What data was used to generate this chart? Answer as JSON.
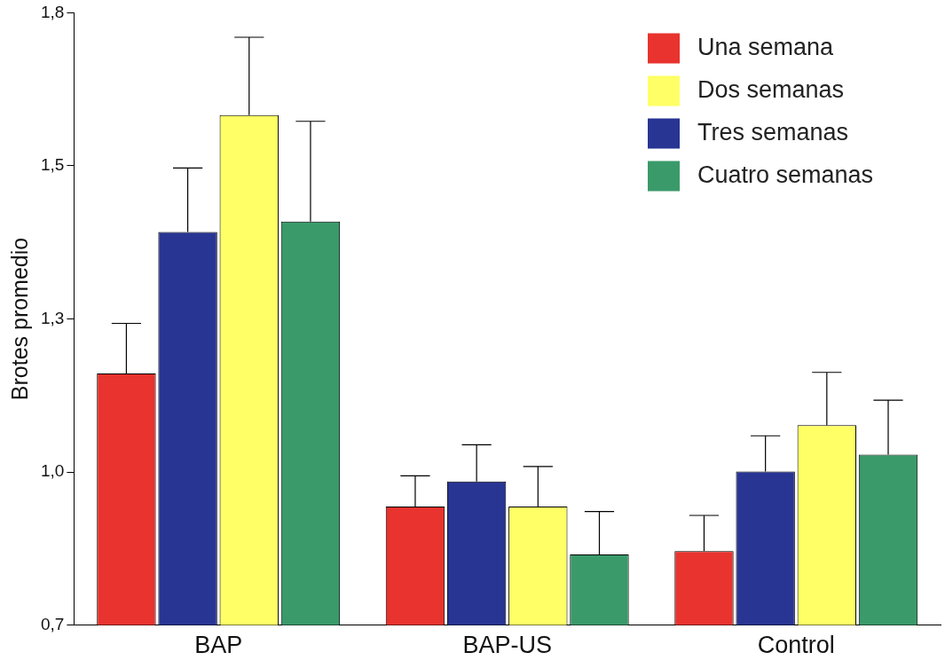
{
  "chart_data": {
    "type": "bar",
    "ylabel": "Brotes promedio",
    "categories": [
      "BAP",
      "BAP-US",
      "Control"
    ],
    "series": [
      {
        "name": "Una semana",
        "color": "#e8332e",
        "values": [
          1.152,
          0.913,
          0.833
        ],
        "errors": [
          [
            1.152,
            1.242
          ],
          [
            0.913,
            0.968
          ],
          [
            0.833,
            0.897
          ]
        ]
      },
      {
        "name": "Dos semanas",
        "color": "#ffff66",
        "values": [
          1.616,
          0.913,
          1.059
        ],
        "errors": [
          [
            1.616,
            1.756
          ],
          [
            0.913,
            0.985
          ],
          [
            1.059,
            1.154
          ]
        ]
      },
      {
        "name": "Tres semanas",
        "color": "#283593",
        "values": [
          1.406,
          0.958,
          0.976
        ],
        "errors": [
          [
            1.406,
            1.521
          ],
          [
            0.958,
            1.024
          ],
          [
            0.976,
            1.04
          ]
        ]
      },
      {
        "name": "Cuatro semanas",
        "color": "#3a9a6a",
        "values": [
          1.425,
          0.827,
          1.006
        ],
        "errors": [
          [
            1.425,
            1.605
          ],
          [
            0.827,
            0.904
          ],
          [
            1.006,
            1.104
          ]
        ]
      }
    ],
    "ylim": [
      0.7,
      1.8
    ],
    "yticks": [
      {
        "value": 0.7,
        "label": "0,7"
      },
      {
        "value": 0.975,
        "label": "1,0"
      },
      {
        "value": 1.25,
        "label": "1,3"
      },
      {
        "value": 1.525,
        "label": "1,5"
      },
      {
        "value": 1.8,
        "label": "1,8"
      }
    ],
    "grid": false,
    "legend": "top right"
  }
}
